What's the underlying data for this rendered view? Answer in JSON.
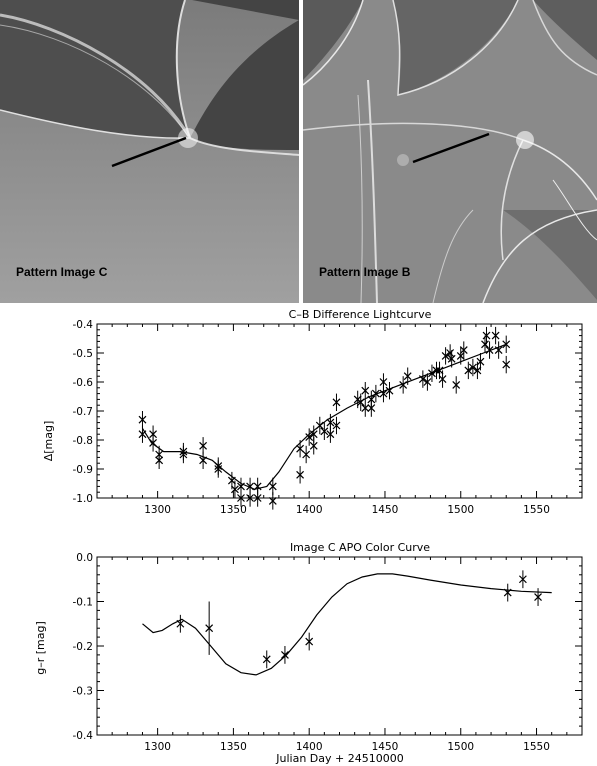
{
  "panels": [
    {
      "label": "Pattern Image C"
    },
    {
      "label": "Pattern Image B"
    }
  ],
  "chart_data": [
    {
      "type": "scatter",
      "title": "C–B Difference Lightcurve",
      "xlabel": "",
      "ylabel": "Δ[mag]",
      "xlim": [
        1260,
        1580
      ],
      "ylim": [
        -0.4,
        -1.0
      ],
      "xticks": [
        1300,
        1350,
        1400,
        1450,
        1500,
        1550
      ],
      "yticks": [
        -0.4,
        -0.5,
        -0.6,
        -0.7,
        -0.8,
        -0.9,
        -1.0
      ],
      "ytick_labels": [
        "-0.4",
        "-0.5",
        "-0.6",
        "-0.7",
        "-0.8",
        "-0.9",
        "-1.0"
      ],
      "points": [
        {
          "x": 1290,
          "y": -0.73,
          "err": 0.03
        },
        {
          "x": 1290,
          "y": -0.78,
          "err": 0.03
        },
        {
          "x": 1297,
          "y": -0.78,
          "err": 0.03
        },
        {
          "x": 1297,
          "y": -0.81,
          "err": 0.03
        },
        {
          "x": 1301,
          "y": -0.85,
          "err": 0.03
        },
        {
          "x": 1301,
          "y": -0.87,
          "err": 0.03
        },
        {
          "x": 1317,
          "y": -0.84,
          "err": 0.03
        },
        {
          "x": 1317,
          "y": -0.85,
          "err": 0.03
        },
        {
          "x": 1330,
          "y": -0.82,
          "err": 0.03
        },
        {
          "x": 1330,
          "y": -0.87,
          "err": 0.03
        },
        {
          "x": 1340,
          "y": -0.89,
          "err": 0.03
        },
        {
          "x": 1340,
          "y": -0.9,
          "err": 0.03
        },
        {
          "x": 1349,
          "y": -0.94,
          "err": 0.03
        },
        {
          "x": 1351,
          "y": -0.97,
          "err": 0.03
        },
        {
          "x": 1355,
          "y": -0.96,
          "err": 0.03
        },
        {
          "x": 1355,
          "y": -1.0,
          "err": 0.03
        },
        {
          "x": 1361,
          "y": -0.96,
          "err": 0.03
        },
        {
          "x": 1361,
          "y": -1.0,
          "err": 0.03
        },
        {
          "x": 1366,
          "y": -0.96,
          "err": 0.03
        },
        {
          "x": 1366,
          "y": -1.0,
          "err": 0.03
        },
        {
          "x": 1376,
          "y": -0.96,
          "err": 0.03
        },
        {
          "x": 1376,
          "y": -1.01,
          "err": 0.03
        },
        {
          "x": 1394,
          "y": -0.83,
          "err": 0.03
        },
        {
          "x": 1394,
          "y": -0.92,
          "err": 0.03
        },
        {
          "x": 1398,
          "y": -0.85,
          "err": 0.03
        },
        {
          "x": 1400,
          "y": -0.79,
          "err": 0.03
        },
        {
          "x": 1403,
          "y": -0.78,
          "err": 0.03
        },
        {
          "x": 1403,
          "y": -0.82,
          "err": 0.03
        },
        {
          "x": 1407,
          "y": -0.75,
          "err": 0.03
        },
        {
          "x": 1410,
          "y": -0.77,
          "err": 0.03
        },
        {
          "x": 1414,
          "y": -0.74,
          "err": 0.03
        },
        {
          "x": 1414,
          "y": -0.78,
          "err": 0.03
        },
        {
          "x": 1418,
          "y": -0.67,
          "err": 0.03
        },
        {
          "x": 1418,
          "y": -0.75,
          "err": 0.03
        },
        {
          "x": 1432,
          "y": -0.66,
          "err": 0.03
        },
        {
          "x": 1434,
          "y": -0.67,
          "err": 0.03
        },
        {
          "x": 1437,
          "y": -0.63,
          "err": 0.03
        },
        {
          "x": 1437,
          "y": -0.69,
          "err": 0.03
        },
        {
          "x": 1441,
          "y": -0.66,
          "err": 0.03
        },
        {
          "x": 1441,
          "y": -0.69,
          "err": 0.03
        },
        {
          "x": 1444,
          "y": -0.64,
          "err": 0.03
        },
        {
          "x": 1449,
          "y": -0.6,
          "err": 0.03
        },
        {
          "x": 1449,
          "y": -0.64,
          "err": 0.03
        },
        {
          "x": 1453,
          "y": -0.63,
          "err": 0.03
        },
        {
          "x": 1462,
          "y": -0.61,
          "err": 0.03
        },
        {
          "x": 1465,
          "y": -0.58,
          "err": 0.03
        },
        {
          "x": 1475,
          "y": -0.59,
          "err": 0.03
        },
        {
          "x": 1478,
          "y": -0.6,
          "err": 0.03
        },
        {
          "x": 1481,
          "y": -0.57,
          "err": 0.03
        },
        {
          "x": 1484,
          "y": -0.56,
          "err": 0.03
        },
        {
          "x": 1486,
          "y": -0.56,
          "err": 0.03
        },
        {
          "x": 1488,
          "y": -0.59,
          "err": 0.03
        },
        {
          "x": 1490,
          "y": -0.51,
          "err": 0.03
        },
        {
          "x": 1493,
          "y": -0.5,
          "err": 0.03
        },
        {
          "x": 1494,
          "y": -0.52,
          "err": 0.03
        },
        {
          "x": 1497,
          "y": -0.61,
          "err": 0.03
        },
        {
          "x": 1500,
          "y": -0.51,
          "err": 0.03
        },
        {
          "x": 1502,
          "y": -0.49,
          "err": 0.03
        },
        {
          "x": 1505,
          "y": -0.56,
          "err": 0.03
        },
        {
          "x": 1508,
          "y": -0.55,
          "err": 0.03
        },
        {
          "x": 1511,
          "y": -0.56,
          "err": 0.03
        },
        {
          "x": 1513,
          "y": -0.53,
          "err": 0.03
        },
        {
          "x": 1516,
          "y": -0.47,
          "err": 0.03
        },
        {
          "x": 1517,
          "y": -0.44,
          "err": 0.03
        },
        {
          "x": 1519,
          "y": -0.49,
          "err": 0.03
        },
        {
          "x": 1523,
          "y": -0.44,
          "err": 0.03
        },
        {
          "x": 1525,
          "y": -0.49,
          "err": 0.03
        },
        {
          "x": 1530,
          "y": -0.47,
          "err": 0.03
        },
        {
          "x": 1530,
          "y": -0.54,
          "err": 0.03
        }
      ],
      "curve": [
        [
          1290,
          -0.76
        ],
        [
          1296,
          -0.81
        ],
        [
          1304,
          -0.84
        ],
        [
          1315,
          -0.84
        ],
        [
          1326,
          -0.85
        ],
        [
          1336,
          -0.87
        ],
        [
          1345,
          -0.91
        ],
        [
          1355,
          -0.95
        ],
        [
          1364,
          -0.97
        ],
        [
          1372,
          -0.96
        ],
        [
          1380,
          -0.91
        ],
        [
          1390,
          -0.83
        ],
        [
          1400,
          -0.78
        ],
        [
          1412,
          -0.73
        ],
        [
          1425,
          -0.69
        ],
        [
          1440,
          -0.65
        ],
        [
          1455,
          -0.62
        ],
        [
          1470,
          -0.59
        ],
        [
          1485,
          -0.56
        ],
        [
          1500,
          -0.53
        ],
        [
          1515,
          -0.5
        ],
        [
          1530,
          -0.47
        ]
      ]
    },
    {
      "type": "scatter",
      "title": "Image C APO Color Curve",
      "xlabel": "Julian Day + 24510000",
      "ylabel": "g–r [mag]",
      "xlim": [
        1260,
        1580
      ],
      "ylim": [
        0.0,
        -0.4
      ],
      "xticks": [
        1300,
        1350,
        1400,
        1450,
        1500,
        1550
      ],
      "yticks": [
        -0.4,
        -0.3,
        -0.2,
        -0.1,
        0.0
      ],
      "ytick_labels": [
        "-0.4",
        "-0.3",
        "-0.2",
        "-0.1",
        "0.0"
      ],
      "points": [
        {
          "x": 1315,
          "y": -0.15,
          "err": 0.02
        },
        {
          "x": 1334,
          "y": -0.16,
          "err": 0.06
        },
        {
          "x": 1372,
          "y": -0.23,
          "err": 0.02
        },
        {
          "x": 1384,
          "y": -0.22,
          "err": 0.02
        },
        {
          "x": 1400,
          "y": -0.19,
          "err": 0.02
        },
        {
          "x": 1531,
          "y": -0.08,
          "err": 0.02
        },
        {
          "x": 1541,
          "y": -0.05,
          "err": 0.02
        },
        {
          "x": 1551,
          "y": -0.09,
          "err": 0.02
        }
      ],
      "curve": [
        [
          1290,
          -0.15
        ],
        [
          1297,
          -0.17
        ],
        [
          1303,
          -0.165
        ],
        [
          1310,
          -0.15
        ],
        [
          1316,
          -0.14
        ],
        [
          1325,
          -0.16
        ],
        [
          1335,
          -0.2
        ],
        [
          1345,
          -0.24
        ],
        [
          1355,
          -0.26
        ],
        [
          1365,
          -0.265
        ],
        [
          1375,
          -0.25
        ],
        [
          1385,
          -0.22
        ],
        [
          1395,
          -0.18
        ],
        [
          1405,
          -0.13
        ],
        [
          1415,
          -0.09
        ],
        [
          1425,
          -0.06
        ],
        [
          1435,
          -0.045
        ],
        [
          1445,
          -0.038
        ],
        [
          1455,
          -0.038
        ],
        [
          1465,
          -0.043
        ],
        [
          1480,
          -0.052
        ],
        [
          1500,
          -0.063
        ],
        [
          1520,
          -0.071
        ],
        [
          1540,
          -0.077
        ],
        [
          1560,
          -0.08
        ]
      ]
    }
  ]
}
